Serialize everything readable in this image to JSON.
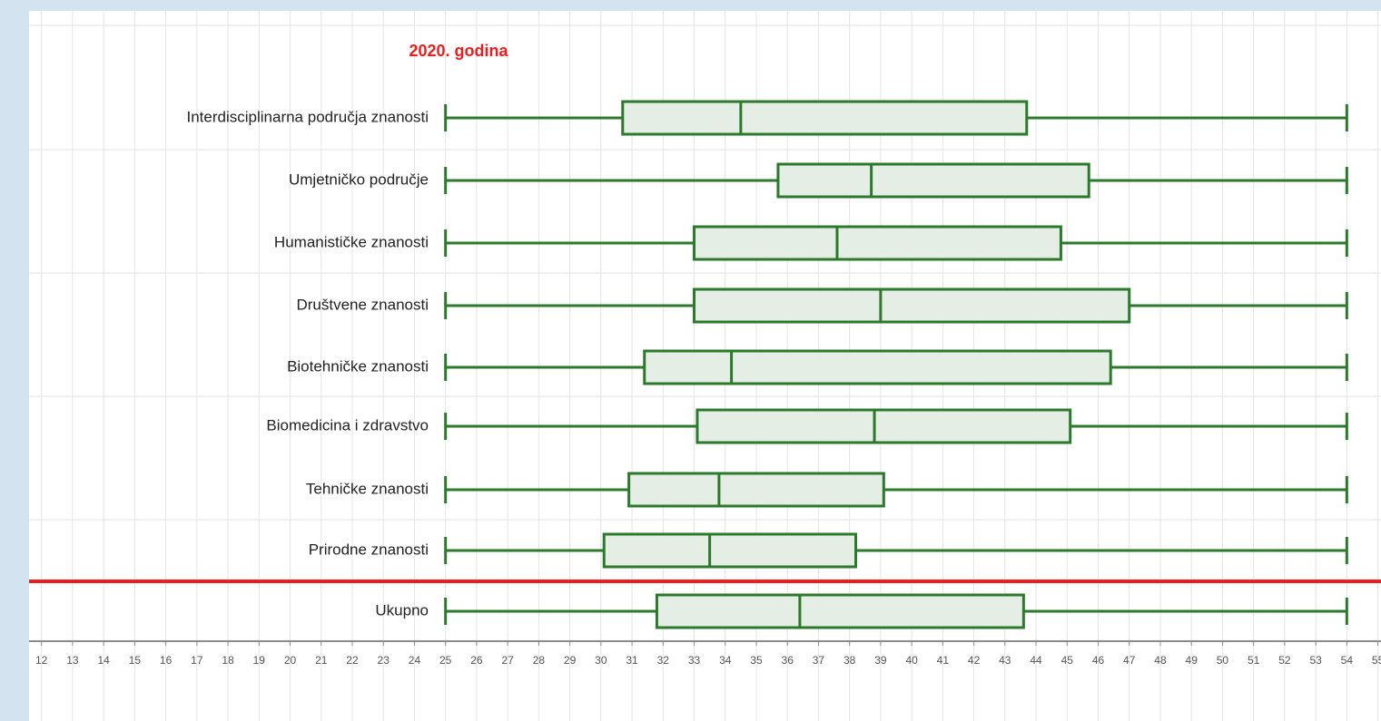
{
  "chart_data": {
    "type": "box",
    "title": "2020. godina",
    "categories": [
      "Interdisciplinarna područja znanosti",
      "Umjetničko područje",
      "Humanističke znanosti",
      "Društvene znanosti",
      "Biotehničke znanosti",
      "Biomedicina i zdravstvo",
      "Tehničke znanosti",
      "Prirodne znanosti",
      "Ukupno"
    ],
    "min": [
      25,
      25,
      25,
      25,
      25,
      25,
      25,
      25,
      25
    ],
    "q1": [
      30.7,
      35.7,
      33.0,
      33.0,
      31.4,
      33.1,
      30.9,
      30.1,
      31.8
    ],
    "median": [
      34.5,
      38.7,
      37.6,
      39.0,
      34.2,
      38.8,
      33.8,
      33.5,
      36.4
    ],
    "q3": [
      43.7,
      45.7,
      44.8,
      47.0,
      46.4,
      45.1,
      39.1,
      38.2,
      43.6
    ],
    "max": [
      54,
      54,
      54,
      54,
      54,
      54,
      54,
      54,
      54
    ],
    "color": "#2b7a2b",
    "fill": "#e5eee5",
    "title_color": "#ee1c1c",
    "xlim": [
      11.6,
      55.1
    ],
    "xticks": [
      12,
      13,
      14,
      15,
      16,
      17,
      18,
      19,
      20,
      21,
      22,
      23,
      24,
      25,
      26,
      27,
      28,
      29,
      30,
      31,
      32,
      33,
      34,
      35,
      36,
      37,
      38,
      39,
      40,
      41,
      42,
      43,
      44,
      45,
      46,
      47,
      48,
      49,
      50,
      51,
      52,
      53,
      54,
      55
    ],
    "grid": true
  }
}
